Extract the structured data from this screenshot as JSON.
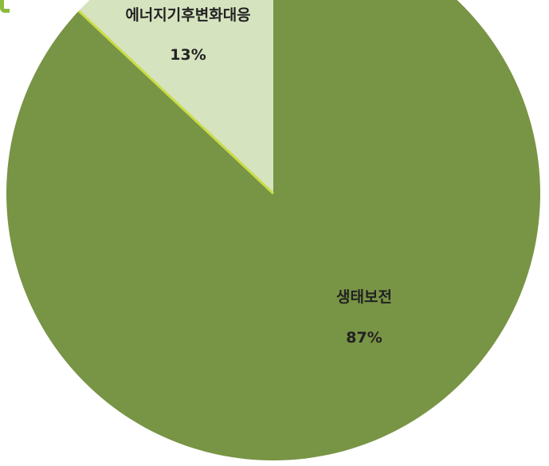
{
  "chart_data": {
    "type": "pie",
    "title": "",
    "legend": "none",
    "start_angle_deg": 0,
    "direction": "counterclockwise",
    "slices": [
      {
        "label": "에너지기후변화대응",
        "percent_label": "13%",
        "value": 13,
        "color": "#d6e3bf"
      },
      {
        "label": "생태보전",
        "percent_label": "87%",
        "value": 87,
        "color": "#789445"
      }
    ],
    "separator_color": "#c9dc46"
  }
}
